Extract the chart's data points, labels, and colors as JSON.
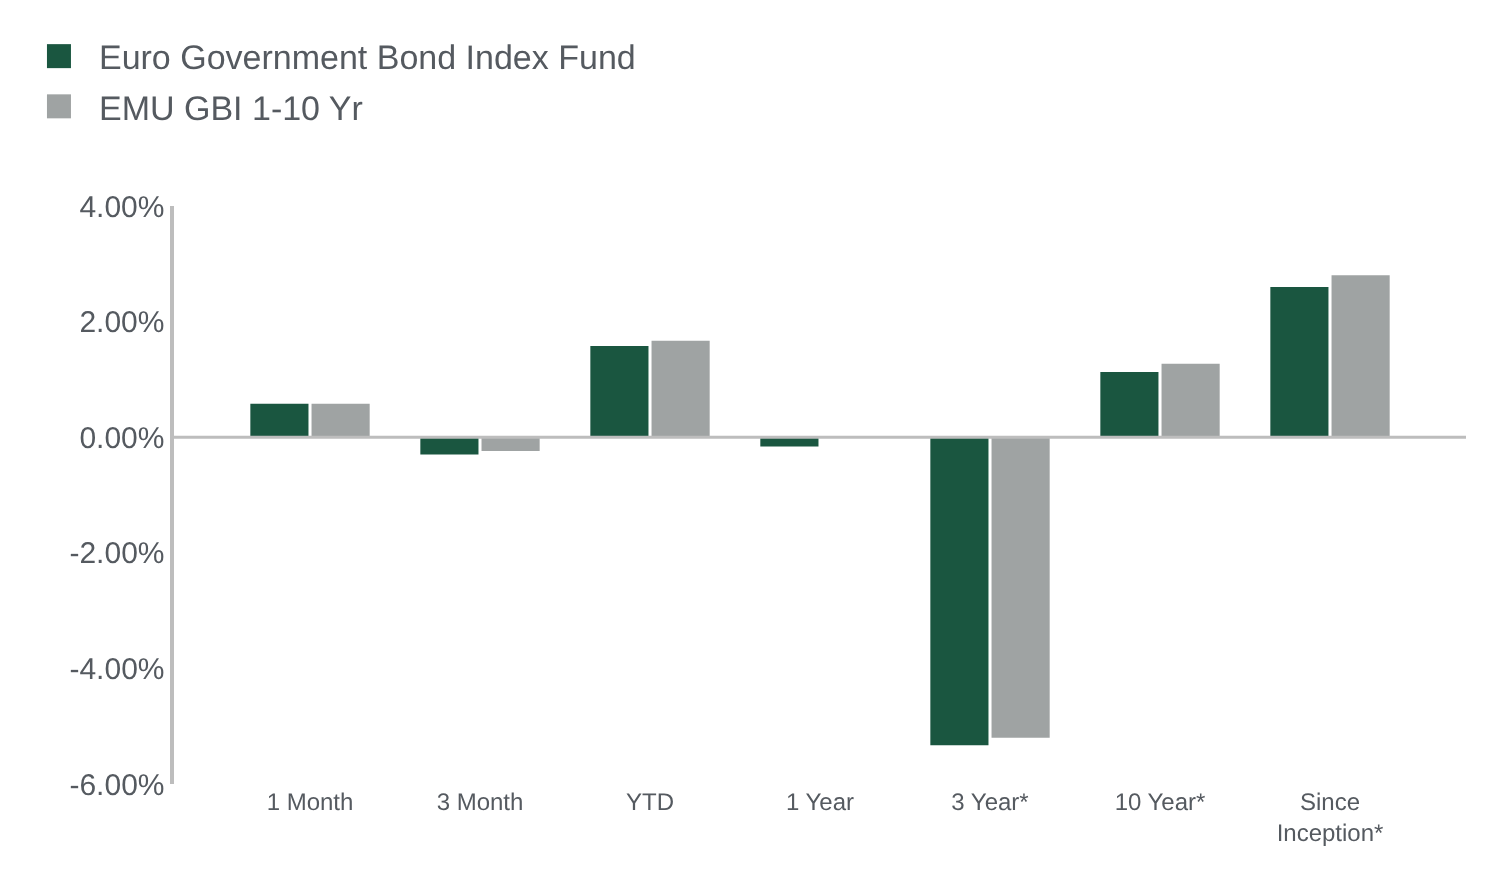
{
  "chart_data": {
    "type": "bar",
    "categories": [
      "1 Month",
      "3 Month",
      "YTD",
      "1 Year",
      "3 Year*",
      "10 Year*",
      "Since Inception*"
    ],
    "series": [
      {
        "name": "Euro Government Bond Index Fund",
        "color": "#1a5640",
        "values": [
          0.58,
          -0.3,
          1.58,
          -0.16,
          -5.33,
          1.13,
          2.6
        ]
      },
      {
        "name": "EMU GBI 1-10 Yr",
        "color": "#9fa3a3",
        "values": [
          0.58,
          -0.24,
          1.67,
          0.0,
          -5.2,
          1.27,
          2.8
        ]
      }
    ],
    "ylim": [
      -6,
      4
    ],
    "yticks": [
      {
        "value": -6,
        "label": "-6.00%"
      },
      {
        "value": -4,
        "label": "-4.00%"
      },
      {
        "value": -2,
        "label": "-2.00%"
      },
      {
        "value": 0,
        "label": "0.00%"
      },
      {
        "value": 2,
        "label": "2.00%"
      },
      {
        "value": 4,
        "label": "4.00%"
      }
    ],
    "ref_lines": [
      {
        "axis": "y",
        "value": 0,
        "color": "#bdbdbd"
      }
    ],
    "legend": "top left"
  }
}
